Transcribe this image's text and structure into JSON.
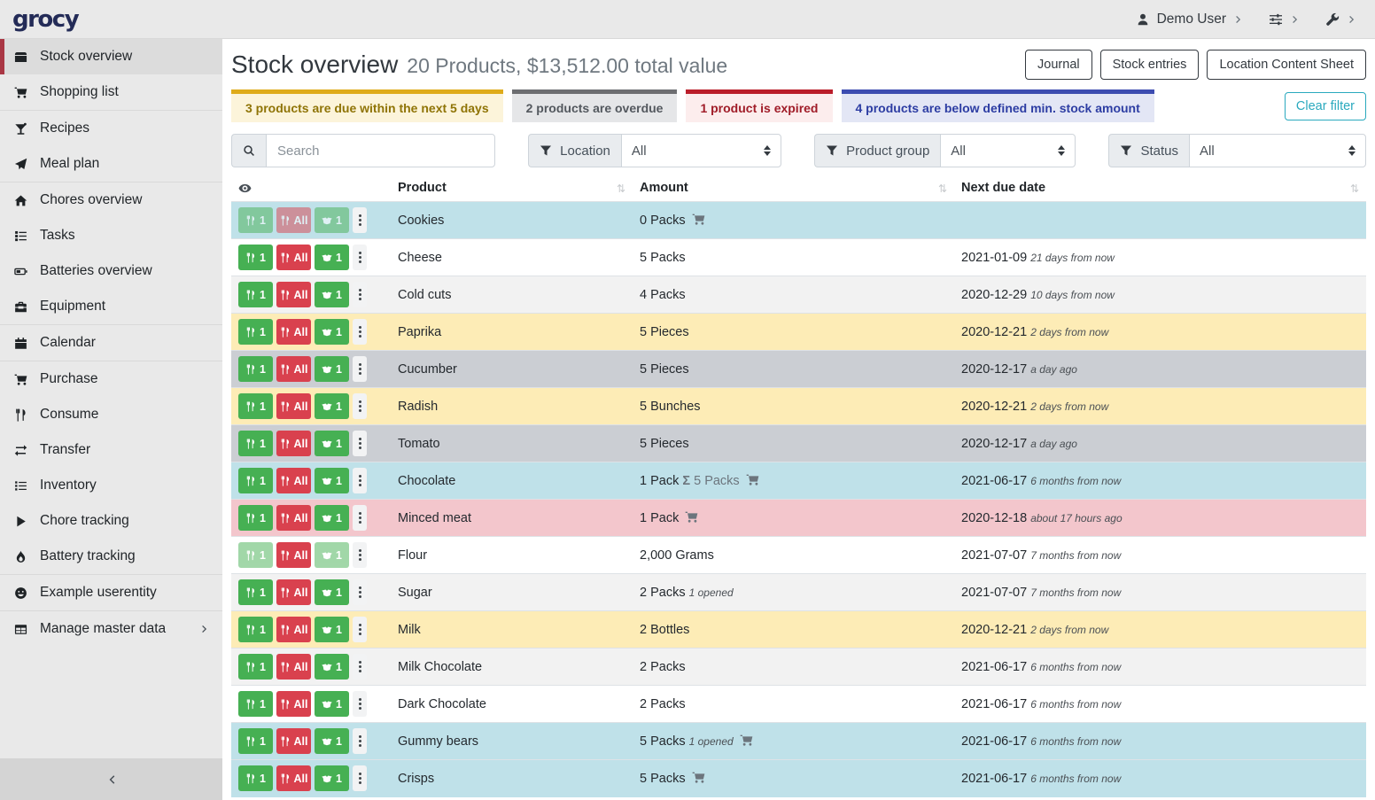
{
  "topbar": {
    "logo": "grocy",
    "user_label": "Demo User"
  },
  "sidebar": {
    "groups": [
      {
        "items": [
          {
            "icon": "box",
            "label": "Stock overview",
            "active": true
          },
          {
            "icon": "shopping-cart",
            "label": "Shopping list"
          }
        ]
      },
      {
        "items": [
          {
            "icon": "cocktail",
            "label": "Recipes"
          },
          {
            "icon": "paper-plane",
            "label": "Meal plan"
          }
        ]
      },
      {
        "items": [
          {
            "icon": "home",
            "label": "Chores overview"
          },
          {
            "icon": "tasks",
            "label": "Tasks"
          },
          {
            "icon": "battery",
            "label": "Batteries overview"
          },
          {
            "icon": "toolbox",
            "label": "Equipment"
          }
        ]
      },
      {
        "items": [
          {
            "icon": "calendar",
            "label": "Calendar"
          }
        ]
      },
      {
        "items": [
          {
            "icon": "shopping-cart",
            "label": "Purchase"
          },
          {
            "icon": "utensils",
            "label": "Consume"
          },
          {
            "icon": "exchange",
            "label": "Transfer"
          },
          {
            "icon": "list",
            "label": "Inventory"
          },
          {
            "icon": "play",
            "label": "Chore tracking"
          },
          {
            "icon": "flame",
            "label": "Battery tracking"
          }
        ]
      },
      {
        "items": [
          {
            "icon": "smiley",
            "label": "Example userentity"
          }
        ]
      },
      {
        "items": [
          {
            "icon": "table",
            "label": "Manage master data",
            "chevron": true
          }
        ]
      }
    ]
  },
  "page": {
    "title": "Stock overview",
    "subtitle": "20 Products, $13,512.00 total value",
    "actions": [
      "Journal",
      "Stock entries",
      "Location Content Sheet"
    ]
  },
  "alerts": [
    {
      "type": "warning",
      "text": "3 products are due within the next 5 days"
    },
    {
      "type": "secondary",
      "text": "2 products are overdue"
    },
    {
      "type": "danger",
      "text": "1 product is expired"
    },
    {
      "type": "belowmin",
      "text": "4 products are below defined min. stock amount"
    }
  ],
  "clear_filter_label": "Clear filter",
  "filters": {
    "search_placeholder": "Search",
    "groups": [
      {
        "label": "Location",
        "value": "All"
      },
      {
        "label": "Product group",
        "value": "All"
      },
      {
        "label": "Status",
        "value": "All"
      }
    ]
  },
  "colors": {
    "accent_red": "#a93744",
    "brand_navy": "#232b57",
    "clear_filter_teal": "#2aa9be",
    "row_info": "#bfe1e9",
    "row_warning": "#fdecb6",
    "row_secondary": "#cbced3",
    "row_danger": "#f3c6cc",
    "btn_green": "#46b053",
    "btn_red": "#d9414e"
  },
  "table": {
    "columns": [
      {
        "label": "Product"
      },
      {
        "label": "Amount"
      },
      {
        "label": "Next due date"
      }
    ],
    "button_labels": {
      "consume_one": "1",
      "consume_all": "All",
      "open_one": "1"
    },
    "rows": [
      {
        "product": "Cookies",
        "amount": "0 Packs",
        "cart": true,
        "date": "",
        "relative": "",
        "row_class": "info",
        "btn_faded": [
          true,
          true,
          true
        ]
      },
      {
        "product": "Cheese",
        "amount": "5 Packs",
        "cart": false,
        "date": "2021-01-09",
        "relative": "21 days from now",
        "row_class": "plain"
      },
      {
        "product": "Cold cuts",
        "amount": "4 Packs",
        "cart": false,
        "date": "2020-12-29",
        "relative": "10 days from now",
        "row_class": "stripe"
      },
      {
        "product": "Paprika",
        "amount": "5 Pieces",
        "cart": false,
        "date": "2020-12-21",
        "relative": "2 days from now",
        "row_class": "warning"
      },
      {
        "product": "Cucumber",
        "amount": "5 Pieces",
        "cart": false,
        "date": "2020-12-17",
        "relative": "a day ago",
        "row_class": "secondary"
      },
      {
        "product": "Radish",
        "amount": "5 Bunches",
        "cart": false,
        "date": "2020-12-21",
        "relative": "2 days from now",
        "row_class": "warning"
      },
      {
        "product": "Tomato",
        "amount": "5 Pieces",
        "cart": false,
        "date": "2020-12-17",
        "relative": "a day ago",
        "row_class": "secondary"
      },
      {
        "product": "Chocolate",
        "amount": "1 Pack",
        "aggregate": "5 Packs",
        "cart": true,
        "date": "2021-06-17",
        "relative": "6 months from now",
        "row_class": "info"
      },
      {
        "product": "Minced meat",
        "amount": "1 Pack",
        "cart": true,
        "date": "2020-12-18",
        "relative": "about 17 hours ago",
        "row_class": "danger"
      },
      {
        "product": "Flour",
        "amount": "2,000 Grams",
        "cart": false,
        "date": "2021-07-07",
        "relative": "7 months from now",
        "row_class": "plain",
        "btn_faded": [
          true,
          false,
          true
        ]
      },
      {
        "product": "Sugar",
        "amount": "2 Packs",
        "opened": "1 opened",
        "cart": false,
        "date": "2021-07-07",
        "relative": "7 months from now",
        "row_class": "stripe"
      },
      {
        "product": "Milk",
        "amount": "2 Bottles",
        "cart": false,
        "date": "2020-12-21",
        "relative": "2 days from now",
        "row_class": "warning"
      },
      {
        "product": "Milk Chocolate",
        "amount": "2 Packs",
        "cart": false,
        "date": "2021-06-17",
        "relative": "6 months from now",
        "row_class": "stripe"
      },
      {
        "product": "Dark Chocolate",
        "amount": "2 Packs",
        "cart": false,
        "date": "2021-06-17",
        "relative": "6 months from now",
        "row_class": "plain"
      },
      {
        "product": "Gummy bears",
        "amount": "5 Packs",
        "opened": "1 opened",
        "cart": true,
        "date": "2021-06-17",
        "relative": "6 months from now",
        "row_class": "info"
      },
      {
        "product": "Crisps",
        "amount": "5 Packs",
        "cart": true,
        "date": "2021-06-17",
        "relative": "6 months from now",
        "row_class": "info"
      }
    ]
  }
}
